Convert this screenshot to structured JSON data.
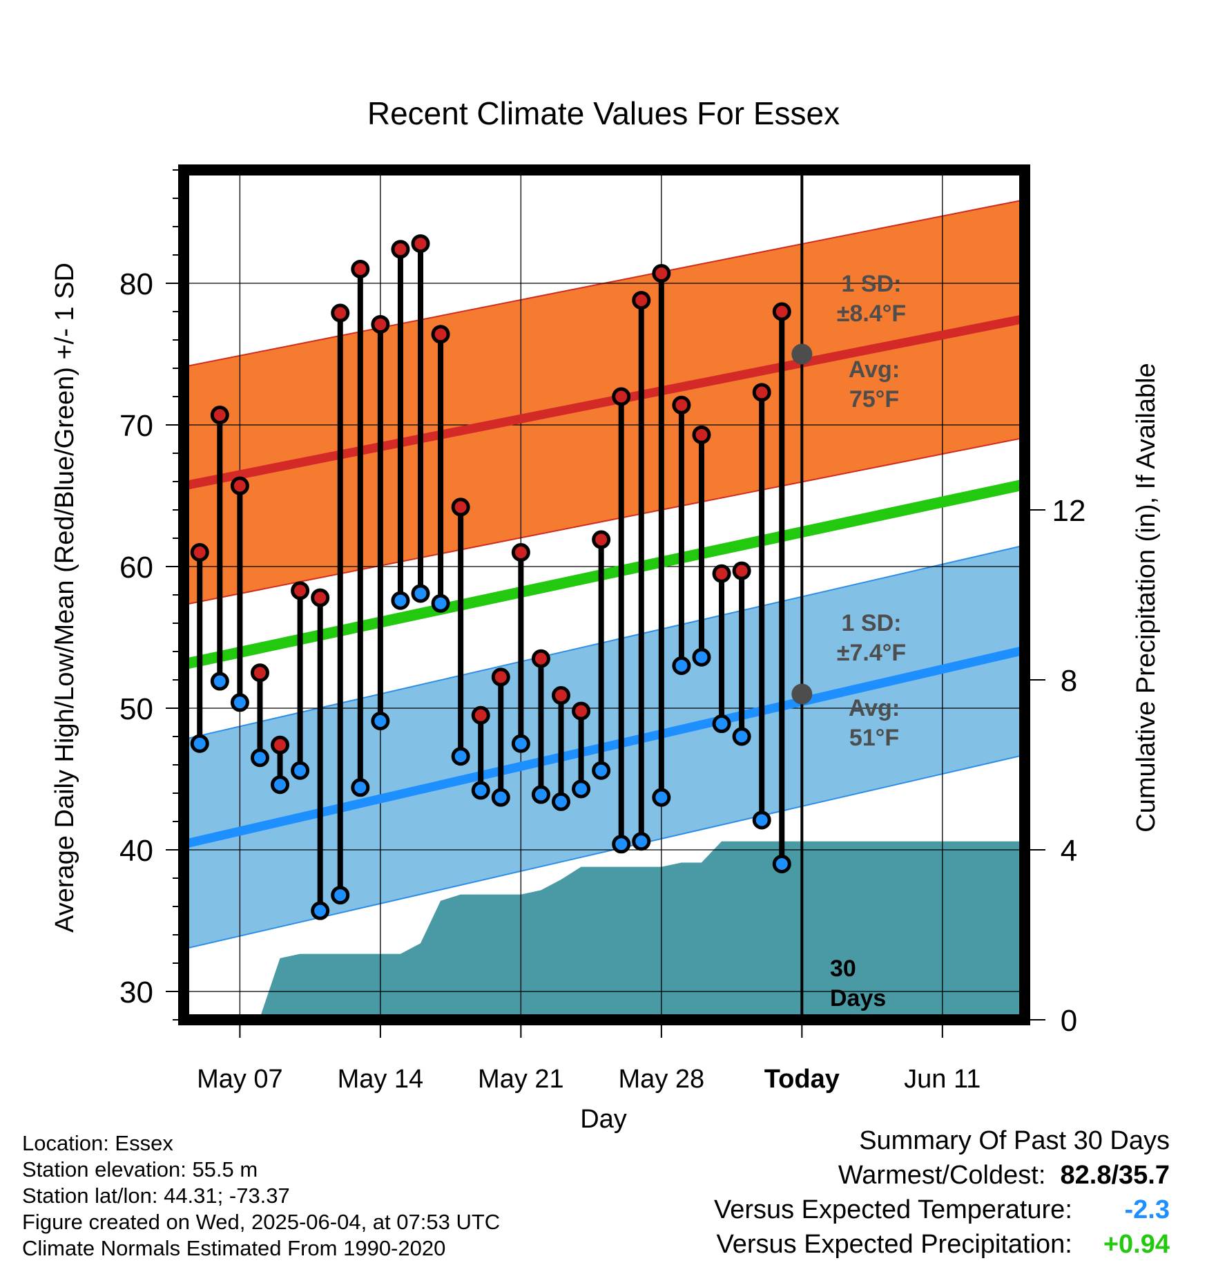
{
  "chart_data": {
    "type": "line",
    "title": "Recent Climate Values For Essex",
    "xlabel": "Day",
    "ylabel": "Average Daily High/Low/Mean (Red/Blue/Green) +/- 1 SD",
    "y2label": "Cumulative Precipitation (in), If Available",
    "ylim": [
      28,
      88
    ],
    "y2lim": [
      0,
      20
    ],
    "xlim": [
      -0.8,
      41.1
    ],
    "x_ticks": [
      {
        "x": 2,
        "label": "May 07"
      },
      {
        "x": 9,
        "label": "May 14"
      },
      {
        "x": 16,
        "label": "May 21"
      },
      {
        "x": 23,
        "label": "May 28"
      },
      {
        "x": 30,
        "label": "Today"
      },
      {
        "x": 37,
        "label": "Jun 11"
      }
    ],
    "y_ticks": [
      30,
      40,
      50,
      60,
      70,
      80
    ],
    "y2_ticks": [
      0,
      4,
      8,
      12
    ],
    "grid": true,
    "days": [
      0,
      1,
      2,
      3,
      4,
      5,
      6,
      7,
      8,
      9,
      10,
      11,
      12,
      13,
      14,
      15,
      16,
      17,
      18,
      19,
      20,
      21,
      22,
      23,
      24,
      25,
      26,
      27,
      28,
      29
    ],
    "series": [
      {
        "name": "High",
        "color": "#cc2222",
        "values": [
          61.0,
          70.7,
          65.7,
          52.5,
          47.4,
          58.3,
          57.8,
          77.9,
          81.0,
          77.1,
          82.4,
          82.8,
          76.4,
          64.2,
          49.5,
          52.2,
          61.0,
          53.5,
          50.9,
          49.8,
          61.9,
          72.0,
          78.8,
          80.7,
          71.4,
          69.3,
          59.5,
          59.7,
          72.3,
          78.0
        ]
      },
      {
        "name": "Low",
        "color": "#1e8fff",
        "values": [
          47.5,
          51.9,
          50.4,
          46.5,
          44.6,
          45.6,
          35.7,
          36.8,
          44.4,
          49.1,
          57.6,
          58.1,
          57.4,
          46.6,
          44.2,
          43.7,
          47.5,
          43.9,
          43.4,
          44.3,
          45.6,
          40.4,
          40.6,
          43.7,
          53.0,
          53.6,
          48.9,
          48.0,
          42.1,
          39.0
        ]
      },
      {
        "name": "Cumulative Precipitation",
        "color": "#4a9aa5",
        "values": [
          0.0,
          0.02,
          0.05,
          0.05,
          1.45,
          1.55,
          1.55,
          1.55,
          1.55,
          1.55,
          1.55,
          1.8,
          2.8,
          2.95,
          2.95,
          2.95,
          2.95,
          3.05,
          3.3,
          3.6,
          3.6,
          3.6,
          3.6,
          3.6,
          3.7,
          3.7,
          4.2,
          4.2,
          4.2,
          4.2
        ]
      }
    ],
    "normals": {
      "x": [
        -0.8,
        41.1
      ],
      "high_mean": [
        65.7,
        77.5
      ],
      "low_mean": [
        40.4,
        54.1
      ],
      "mean": [
        53.1,
        65.8
      ],
      "high_sd": 8.4,
      "low_sd": 7.4,
      "band_high_color": "#f47b30",
      "band_low_color": "#82c0e6",
      "mean_color": "#22c90f"
    },
    "annotations": {
      "high_sd_line1": "1 SD:",
      "high_sd_line2": "±8.4°F",
      "high_avg_line1": "Avg:",
      "high_avg_line2": "75°F",
      "low_sd_line1": "1 SD:",
      "low_sd_line2": "±7.4°F",
      "low_avg_line1": "Avg:",
      "low_avg_line2": "51°F",
      "period_line1": "30",
      "period_line2": "Days",
      "today_x": 30,
      "today_high_avg": 75,
      "today_low_avg": 51,
      "precip_total_after_day": 4.2
    }
  },
  "footer": {
    "location": "Location: Essex",
    "elevation": "Station elevation: 55.5 m",
    "latlon": "Station lat/lon: 44.31; -73.37",
    "created": "Figure created on Wed, 2025-06-04, at 07:53 UTC",
    "normals": "Climate Normals Estimated From 1990-2020"
  },
  "summary": {
    "title": "Summary Of Past 30 Days",
    "warmest_label": "Warmest/Coldest:",
    "warmest_value": "82.8/35.7",
    "temp_label": "Versus Expected Temperature:",
    "temp_value": "-2.3",
    "temp_color": "#1e8fff",
    "precip_label": "Versus Expected Precipitation:",
    "precip_value": "+0.94",
    "precip_color": "#22c90f"
  }
}
